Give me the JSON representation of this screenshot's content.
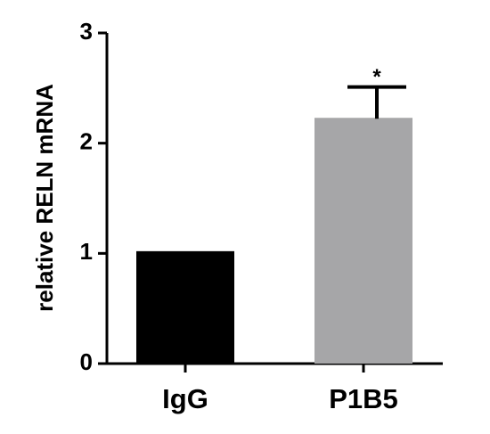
{
  "chart_data": {
    "type": "bar",
    "y_label": "relative RELN mRNA",
    "categories": [
      "IgG",
      "P1B5"
    ],
    "values": [
      1.02,
      2.23
    ],
    "errors": [
      null,
      0.28
    ],
    "annotations": [
      null,
      "*"
    ],
    "colors": [
      "#000000",
      "#a6a6a8"
    ],
    "ylim": [
      0,
      3
    ],
    "yticks": [
      0,
      1,
      2,
      3
    ]
  }
}
